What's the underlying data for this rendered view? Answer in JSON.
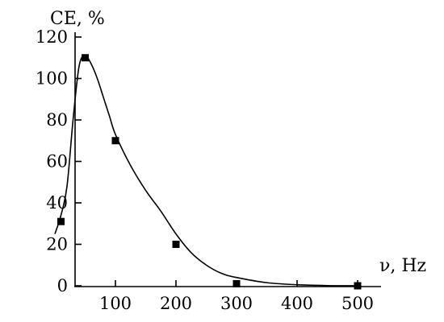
{
  "chart_data": {
    "type": "scatter",
    "title": "",
    "xlabel": "ν, Hz",
    "ylabel": "CE, %",
    "xlim": [
      0,
      500
    ],
    "ylim": [
      0,
      120
    ],
    "x_ticks": [
      100,
      200,
      300,
      400,
      500
    ],
    "x_tick_labels": [
      "100",
      "200",
      "300",
      "400",
      "500"
    ],
    "y_ticks": [
      0,
      20,
      40,
      60,
      80,
      100,
      120
    ],
    "y_tick_labels": [
      "0",
      "20",
      "40",
      "60",
      "80",
      "100",
      "120"
    ],
    "grid": false,
    "legend": "none",
    "series": [
      {
        "type": "scatter",
        "marker": "square",
        "x": [
          10,
          50,
          100,
          200,
          300,
          500
        ],
        "y": [
          31,
          110,
          70,
          20,
          1,
          0
        ]
      },
      {
        "type": "line",
        "style": "smooth-fit",
        "x": [
          0,
          10,
          20,
          30,
          40,
          50,
          60,
          70,
          80,
          90,
          100,
          125,
          150,
          175,
          200,
          225,
          250,
          275,
          300,
          350,
          400,
          450,
          500
        ],
        "y": [
          25,
          34,
          48,
          80,
          106,
          111,
          107,
          100,
          91,
          82,
          73,
          58,
          46,
          36,
          25,
          16,
          10,
          6,
          4,
          1.5,
          0.5,
          0.1,
          0
        ]
      }
    ]
  }
}
